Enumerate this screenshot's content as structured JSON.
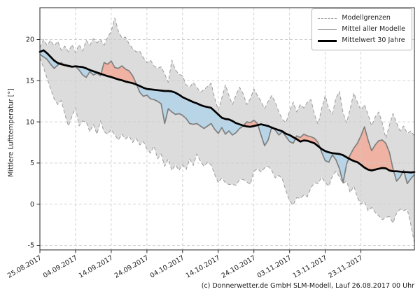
{
  "chart_data": {
    "type": "line",
    "title": "",
    "ylabel": "Mittlere Lufttemperatur [°]",
    "grid": true,
    "legend_position": "upper right",
    "legend": [
      "Modellgrenzen",
      "Mittel aller Modelle",
      "Mittelwert 30 Jahre"
    ],
    "x_tick_labels": [
      "25.08.2017",
      "04.09.2017",
      "14.09.2017",
      "24.09.2017",
      "04.10.2017",
      "14.10.2017",
      "24.10.2017",
      "03.11.2017",
      "13.11.2017",
      "23.11.2017"
    ],
    "x_tick_days": [
      0,
      10,
      20,
      30,
      40,
      50,
      60,
      70,
      80,
      90
    ],
    "x_total_days": 105,
    "y_ticks": [
      20,
      15,
      10,
      5,
      0,
      -5
    ],
    "ylim": [
      -5.6,
      23.9
    ],
    "colors": {
      "band_fill": "#dcdcdc",
      "bound_line": "#9a9a9a",
      "model_mean_line": "#7f7f7f",
      "mean30_line": "#000000",
      "below_normal_fill": "#b8d5e7",
      "above_normal_fill": "#f0b2a2",
      "gridline": "#cdcdcd",
      "spine": "#262626"
    },
    "series": {
      "upper_bound": {
        "name": "Modellgrenzen (oben)",
        "values": [
          19.0,
          20.0,
          19.3,
          19.9,
          19.2,
          19.8,
          18.7,
          19.2,
          18.5,
          19.4,
          18.4,
          19.4,
          18.6,
          19.9,
          19.3,
          20.1,
          19.6,
          20.0,
          19.3,
          20.3,
          21.0,
          22.6,
          21.0,
          20.2,
          20.3,
          19.5,
          18.9,
          18.5,
          18.6,
          17.8,
          17.2,
          17.5,
          16.8,
          16.5,
          16.7,
          15.8,
          14.8,
          17.5,
          16.3,
          15.8,
          15.6,
          14.5,
          14.2,
          14.8,
          14.2,
          13.6,
          13.9,
          14.3,
          14.7,
          12.9,
          11.4,
          12.9,
          14.5,
          13.2,
          12.1,
          13.3,
          14.2,
          13.4,
          12.1,
          12.8,
          14.0,
          13.2,
          12.5,
          11.6,
          12.5,
          13.2,
          12.4,
          11.2,
          10.3,
          9.9,
          11.3,
          12.4,
          11.2,
          12.1,
          11.7,
          12.4,
          12.7,
          10.9,
          9.7,
          11.6,
          13.2,
          11.6,
          10.9,
          12.9,
          13.7,
          11.1,
          9.9,
          11.6,
          13.5,
          12.4,
          11.4,
          12.1,
          10.9,
          9.5,
          10.6,
          11.2,
          9.9,
          8.0,
          9.6,
          11.0,
          9.9,
          8.9,
          9.5,
          8.6,
          8.9,
          8.3
        ]
      },
      "lower_bound": {
        "name": "Modellgrenzen (unten)",
        "values": [
          17.8,
          16.6,
          15.3,
          14.0,
          12.8,
          12.1,
          12.6,
          10.9,
          9.5,
          10.7,
          11.7,
          9.5,
          10.1,
          10.0,
          8.8,
          9.7,
          8.5,
          10.1,
          8.8,
          8.5,
          9.1,
          8.4,
          7.8,
          8.5,
          7.9,
          8.3,
          7.5,
          8.0,
          7.2,
          7.6,
          6.7,
          6.2,
          7.1,
          5.5,
          6.1,
          4.6,
          5.5,
          4.1,
          4.8,
          4.1,
          4.8,
          4.2,
          5.5,
          4.7,
          6.1,
          5.2,
          4.6,
          5.1,
          4.8,
          3.6,
          2.6,
          3.2,
          2.6,
          2.4,
          2.4,
          2.3,
          3.0,
          3.0,
          2.7,
          2.4,
          4.0,
          4.3,
          3.9,
          4.4,
          4.6,
          4.1,
          3.2,
          3.5,
          3.0,
          1.6,
          0.4,
          -0.1,
          0.8,
          0.7,
          1.1,
          0.9,
          2.0,
          2.6,
          2.5,
          3.3,
          2.6,
          2.2,
          3.4,
          4.0,
          3.3,
          2.5,
          2.8,
          1.4,
          2.2,
          0.8,
          0.0,
          0.3,
          -0.8,
          -0.4,
          -1.0,
          -1.4,
          -1.9,
          -1.6,
          -1.5,
          -2.3,
          -1.1,
          -0.6,
          -0.8,
          -0.6,
          -2.5,
          -4.7
        ]
      },
      "model_mean": {
        "name": "Mittel aller Modelle",
        "values": [
          18.2,
          17.9,
          17.6,
          17.0,
          16.5,
          16.9,
          17.2,
          16.85,
          16.7,
          16.65,
          16.7,
          16.3,
          15.7,
          15.4,
          16.1,
          15.7,
          15.9,
          15.6,
          17.2,
          17.0,
          17.4,
          16.6,
          16.5,
          16.8,
          16.4,
          16.2,
          15.6,
          14.65,
          13.6,
          13.1,
          13.25,
          12.8,
          12.7,
          12.5,
          12.2,
          9.8,
          11.6,
          11.2,
          10.9,
          11.0,
          10.8,
          10.4,
          9.8,
          9.7,
          9.8,
          9.5,
          9.2,
          9.5,
          9.8,
          9.1,
          8.6,
          9.3,
          8.5,
          8.9,
          8.4,
          8.7,
          9.2,
          9.5,
          10.0,
          9.9,
          10.2,
          9.8,
          8.4,
          7.1,
          7.8,
          9.4,
          9.0,
          8.4,
          8.8,
          8.2,
          7.6,
          7.4,
          8.3,
          8.1,
          8.5,
          8.3,
          8.2,
          8.0,
          7.5,
          6.3,
          5.3,
          5.1,
          6.0,
          5.4,
          4.3,
          2.6,
          4.9,
          6.0,
          6.8,
          7.4,
          8.3,
          9.4,
          7.8,
          6.5,
          7.2,
          7.7,
          7.8,
          7.4,
          6.3,
          4.3,
          2.8,
          3.3,
          4.1,
          2.5,
          3.1,
          3.6
        ]
      },
      "mean_30y": {
        "name": "Mittelwert 30 Jahre",
        "values": [
          18.5,
          18.7,
          18.35,
          17.9,
          17.45,
          17.15,
          17.0,
          16.9,
          16.8,
          16.7,
          16.75,
          16.7,
          16.65,
          16.5,
          16.3,
          16.15,
          16.0,
          15.85,
          15.7,
          15.55,
          15.45,
          15.3,
          15.15,
          15.05,
          14.9,
          14.8,
          14.7,
          14.55,
          14.35,
          14.15,
          14.0,
          13.95,
          13.9,
          13.85,
          13.8,
          13.75,
          13.75,
          13.7,
          13.55,
          13.3,
          13.0,
          12.8,
          12.6,
          12.4,
          12.25,
          12.05,
          11.9,
          11.8,
          11.7,
          11.3,
          10.9,
          10.5,
          10.35,
          10.3,
          10.1,
          9.85,
          9.7,
          9.55,
          9.45,
          9.4,
          9.5,
          9.6,
          9.7,
          9.6,
          9.5,
          9.3,
          9.15,
          9.0,
          8.85,
          8.55,
          8.4,
          8.15,
          7.9,
          7.6,
          7.75,
          7.7,
          7.55,
          7.4,
          7.05,
          6.7,
          6.45,
          6.3,
          6.2,
          6.15,
          6.1,
          5.95,
          5.7,
          5.45,
          5.25,
          5.1,
          4.8,
          4.45,
          4.2,
          4.1,
          4.2,
          4.3,
          4.4,
          4.35,
          4.1,
          4.0,
          4.0,
          3.95,
          3.9,
          3.9,
          3.85,
          3.9
        ]
      }
    }
  },
  "footer": {
    "text": "(c) Donnerwetter.de GmbH SLM-Modell, Lauf 26.08.2017 00 Uhr"
  }
}
